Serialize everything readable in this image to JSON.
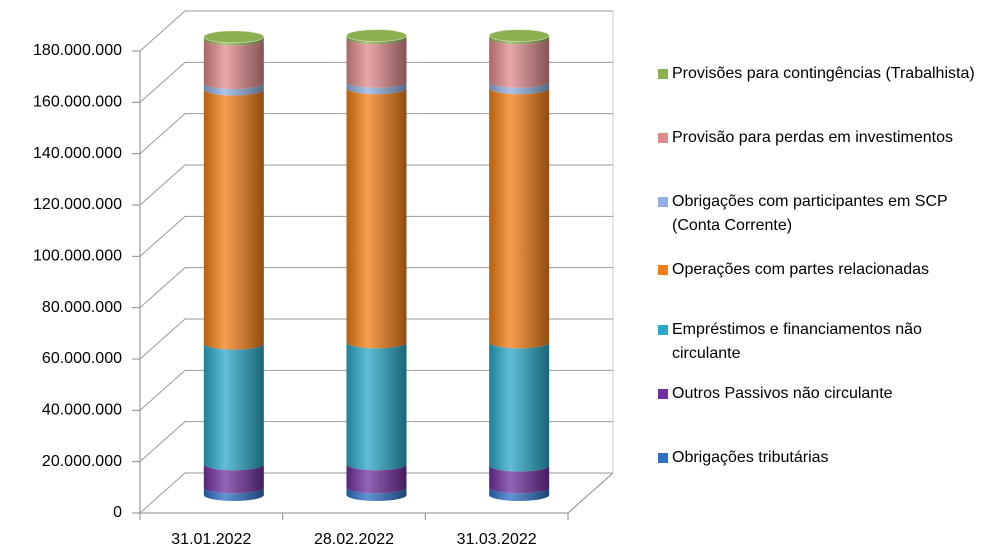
{
  "chart_data": {
    "type": "cylinder_stacked",
    "categories": [
      "31.01.2022",
      "28.02.2022",
      "31.03.2022"
    ],
    "ylim": [
      0,
      180000000
    ],
    "yticks": [
      0,
      {
        "value": 20000000,
        "label": "20.000.000"
      },
      {
        "value": 40000000,
        "label": "40.000.000"
      },
      {
        "value": 60000000,
        "label": "60.000.000"
      },
      {
        "value": 80000000,
        "label": "80.000.000"
      },
      {
        "value": 100000000,
        "label": "100.000.000"
      },
      {
        "value": 120000000,
        "label": "120.000.000"
      },
      {
        "value": 140000000,
        "label": "140.000.000"
      },
      {
        "value": 160000000,
        "label": "160.000.000"
      },
      {
        "value": 180000000,
        "label": "180.000.000"
      }
    ],
    "grid": true,
    "legend": "right",
    "series": [
      {
        "name": "Obrigações tributárias",
        "color": "#2e6fc4",
        "values": [
          3000000,
          3000000,
          3000000
        ]
      },
      {
        "name": "Outros Passivos não circulante",
        "color": "#7030a0",
        "values": [
          9000000,
          9000000,
          8500000
        ]
      },
      {
        "name": "Empréstimos e financiamentos não circulante",
        "color": "#2aa8c8",
        "values": [
          47000000,
          47500000,
          48000000
        ]
      },
      {
        "name": "Operações com partes relacionadas",
        "color": "#f47f17",
        "values": [
          99000000,
          99000000,
          99000000
        ]
      },
      {
        "name": "Obrigações com participantes em SCP (Conta Corrente)",
        "color": "#8fb0e0",
        "values": [
          2500000,
          2500000,
          2500000
        ]
      },
      {
        "name": "Provisão para perdas em investimentos",
        "color": "#e08a8a",
        "values": [
          17000000,
          17000000,
          17000000
        ]
      },
      {
        "name": "Provisões para contingências (Trabalhista)",
        "color": "#8cb050",
        "values": [
          1000000,
          1000000,
          1000000
        ]
      }
    ]
  }
}
